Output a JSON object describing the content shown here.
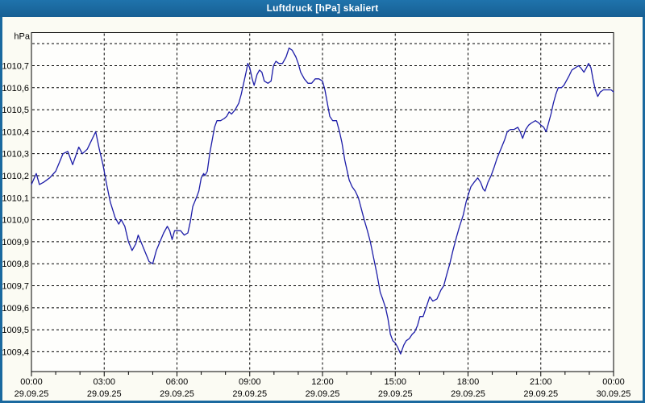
{
  "window": {
    "title": "Luftdruck [hPa] skaliert"
  },
  "colors": {
    "title_bar": "#1a699f",
    "window_border": "#1a699f",
    "content_background": "#fbfbf3",
    "plot_background": "#fefefc",
    "gridline": "#000000",
    "curve": "#1d1da8",
    "title_text": "#ffffff"
  },
  "chart_data": {
    "type": "line",
    "title": "Luftdruck [hPa] skaliert",
    "ylabel": "hPa",
    "unit_label": "hPa",
    "grid": true,
    "legend": "none",
    "ylim": [
      1009.31,
      1010.85
    ],
    "xlim_hours": [
      0,
      24
    ],
    "y_grid_values": [
      1010.8,
      1010.7,
      1010.6,
      1010.5,
      1010.4,
      1010.3,
      1010.2,
      1010.1,
      1010.0,
      1009.9,
      1009.8,
      1009.7,
      1009.6,
      1009.5,
      1009.4
    ],
    "y_grid_labels": [
      "",
      "1010,7",
      "1010,6",
      "1010,5",
      "1010,4",
      "1010,3",
      "1010,2",
      "1010,1",
      "1010,0",
      "1009,9",
      "1009,8",
      "1009,7",
      "1009,6",
      "1009,5",
      "1009,4"
    ],
    "x_tick_hours": [
      0,
      3,
      6,
      9,
      12,
      15,
      18,
      21,
      24
    ],
    "x_tick_times": [
      "00:00",
      "03:00",
      "06:00",
      "09:00",
      "12:00",
      "15:00",
      "18:00",
      "21:00",
      "00:00"
    ],
    "x_tick_dates": [
      "29.09.25",
      "29.09.25",
      "29.09.25",
      "29.09.25",
      "29.09.25",
      "29.09.25",
      "29.09.25",
      "29.09.25",
      "30.09.25"
    ],
    "minor_tick_every_hours": 1,
    "series": [
      {
        "name": "Luftdruck",
        "color": "#1d1da8",
        "x_hours": [
          0,
          0.2,
          0.33,
          0.5,
          0.75,
          1.0,
          1.15,
          1.3,
          1.5,
          1.7,
          1.95,
          2.1,
          2.3,
          2.65,
          2.8,
          2.95,
          3.1,
          3.25,
          3.45,
          3.6,
          3.7,
          3.85,
          4.0,
          4.15,
          4.3,
          4.4,
          4.55,
          4.7,
          4.85,
          5.0,
          5.15,
          5.3,
          5.45,
          5.6,
          5.7,
          5.8,
          5.9,
          6.0,
          6.15,
          6.3,
          6.45,
          6.55,
          6.65,
          6.8,
          6.9,
          7.0,
          7.1,
          7.15,
          7.25,
          7.35,
          7.45,
          7.55,
          7.65,
          7.8,
          7.95,
          8.05,
          8.15,
          8.25,
          8.4,
          8.55,
          8.65,
          8.75,
          8.85,
          8.92,
          9.0,
          9.1,
          9.18,
          9.3,
          9.4,
          9.5,
          9.6,
          9.75,
          9.88,
          9.98,
          10.08,
          10.2,
          10.35,
          10.5,
          10.62,
          10.75,
          10.9,
          11.0,
          11.1,
          11.25,
          11.4,
          11.55,
          11.7,
          11.85,
          12.0,
          12.1,
          12.2,
          12.3,
          12.42,
          12.58,
          12.7,
          12.8,
          12.92,
          13.0,
          13.1,
          13.22,
          13.35,
          13.48,
          13.6,
          13.72,
          13.85,
          13.97,
          14.1,
          14.25,
          14.38,
          14.48,
          14.6,
          14.7,
          14.8,
          14.9,
          15.0,
          15.1,
          15.22,
          15.35,
          15.45,
          15.58,
          15.7,
          15.8,
          15.92,
          16.02,
          16.15,
          16.3,
          16.42,
          16.55,
          16.72,
          16.88,
          17.0,
          17.12,
          17.25,
          17.38,
          17.52,
          17.65,
          17.8,
          17.92,
          18.0,
          18.12,
          18.25,
          18.4,
          18.52,
          18.62,
          18.7,
          18.82,
          18.95,
          19.08,
          19.2,
          19.35,
          19.5,
          19.62,
          19.75,
          19.9,
          20.05,
          20.15,
          20.25,
          20.38,
          20.5,
          20.62,
          20.78,
          20.92,
          21.0,
          21.12,
          21.22,
          21.32,
          21.42,
          21.52,
          21.62,
          21.72,
          21.85,
          21.95,
          22.05,
          22.15,
          22.28,
          22.42,
          22.55,
          22.65,
          22.78,
          22.88,
          22.97,
          23.07,
          23.15,
          23.25,
          23.35,
          23.45,
          23.58,
          23.75,
          23.9,
          24.0
        ],
        "values": [
          1010.16,
          1010.21,
          1010.16,
          1010.17,
          1010.19,
          1010.22,
          1010.26,
          1010.3,
          1010.31,
          1010.25,
          1010.33,
          1010.3,
          1010.32,
          1010.4,
          1010.32,
          1010.25,
          1010.16,
          1010.08,
          1010.01,
          1009.98,
          1010.0,
          1009.97,
          1009.9,
          1009.86,
          1009.89,
          1009.93,
          1009.89,
          1009.85,
          1009.81,
          1009.8,
          1009.86,
          1009.9,
          1009.94,
          1009.97,
          1009.95,
          1009.91,
          1009.95,
          1009.95,
          1009.95,
          1009.93,
          1009.94,
          1009.99,
          1010.06,
          1010.1,
          1010.13,
          1010.19,
          1010.21,
          1010.2,
          1010.22,
          1010.3,
          1010.36,
          1010.42,
          1010.45,
          1010.45,
          1010.46,
          1010.47,
          1010.49,
          1010.48,
          1010.5,
          1010.53,
          1010.57,
          1010.62,
          1010.67,
          1010.71,
          1010.69,
          1010.64,
          1010.61,
          1010.66,
          1010.68,
          1010.67,
          1010.63,
          1010.62,
          1010.63,
          1010.7,
          1010.72,
          1010.71,
          1010.71,
          1010.74,
          1010.78,
          1010.77,
          1010.74,
          1010.71,
          1010.67,
          1010.64,
          1010.62,
          1010.62,
          1010.64,
          1010.64,
          1010.63,
          1010.59,
          1010.53,
          1010.47,
          1010.45,
          1010.45,
          1010.4,
          1010.35,
          1010.27,
          1010.23,
          1010.18,
          1010.15,
          1010.13,
          1010.1,
          1010.05,
          1010.0,
          1009.95,
          1009.9,
          1009.83,
          1009.75,
          1009.67,
          1009.64,
          1009.6,
          1009.55,
          1009.48,
          1009.45,
          1009.44,
          1009.42,
          1009.39,
          1009.43,
          1009.45,
          1009.46,
          1009.48,
          1009.49,
          1009.52,
          1009.56,
          1009.56,
          1009.61,
          1009.65,
          1009.63,
          1009.64,
          1009.68,
          1009.7,
          1009.75,
          1009.8,
          1009.86,
          1009.92,
          1009.97,
          1010.02,
          1010.08,
          1010.11,
          1010.15,
          1010.17,
          1010.19,
          1010.17,
          1010.14,
          1010.13,
          1010.17,
          1010.2,
          1010.24,
          1010.28,
          1010.32,
          1010.36,
          1010.4,
          1010.41,
          1010.41,
          1010.42,
          1010.4,
          1010.37,
          1010.41,
          1010.43,
          1010.44,
          1010.45,
          1010.44,
          1010.43,
          1010.42,
          1010.4,
          1010.44,
          1010.48,
          1010.53,
          1010.57,
          1010.6,
          1010.6,
          1010.61,
          1010.63,
          1010.65,
          1010.68,
          1010.69,
          1010.7,
          1010.69,
          1010.67,
          1010.69,
          1010.71,
          1010.69,
          1010.64,
          1010.59,
          1010.56,
          1010.58,
          1010.59,
          1010.59,
          1010.59,
          1010.58
        ]
      }
    ]
  }
}
